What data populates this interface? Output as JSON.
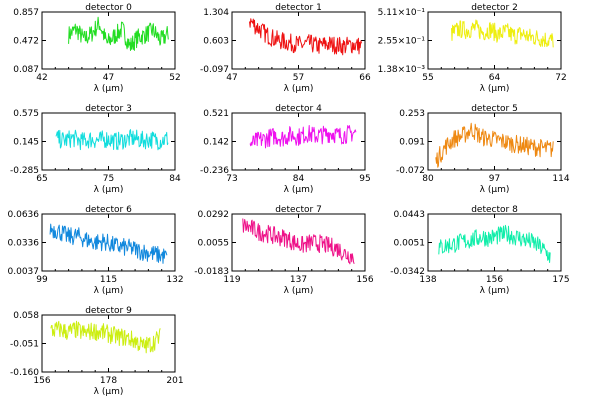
{
  "chart_data": [
    {
      "type": "line",
      "title": "detector 0",
      "xlabel": "λ (μm)",
      "x_range": [
        42,
        52
      ],
      "xticks": [
        "42",
        "47",
        "52"
      ],
      "ylim": [
        0.087,
        0.857
      ],
      "yticks": [
        "0.857",
        "0.472",
        "0.087"
      ],
      "color": "#22dd22",
      "x_extent": [
        44,
        51.5
      ],
      "anchors": [
        0.6,
        0.7,
        0.52,
        0.62,
        0.8,
        0.45,
        0.58,
        0.7,
        0.4,
        0.55,
        0.6,
        0.68,
        0.5,
        0.62
      ]
    },
    {
      "type": "line",
      "title": "detector 1",
      "xlabel": "λ (μm)",
      "x_range": [
        47,
        66
      ],
      "xticks": [
        "47",
        "57",
        "66"
      ],
      "ylim": [
        -0.097,
        1.304
      ],
      "yticks": [
        "1.304",
        "0.603",
        "-0.097"
      ],
      "color": "#ee1111",
      "x_extent": [
        49.5,
        65.5
      ],
      "anchors": [
        0.85,
        0.72,
        0.6,
        0.52,
        0.48,
        0.45,
        0.42,
        0.45,
        0.4,
        0.44,
        0.42,
        0.4,
        0.43,
        0.4
      ]
    },
    {
      "type": "line",
      "title": "detector 2",
      "xlabel": "λ (μm)",
      "x_range": [
        55,
        72
      ],
      "xticks": [
        "55",
        "64",
        "72"
      ],
      "ylim": [
        0.00138,
        0.511
      ],
      "yticks": [
        "5.11×10⁻¹",
        "2.55×10⁻¹",
        "1.38×10⁻³"
      ],
      "color": "#eeee11",
      "x_extent": [
        58,
        71
      ],
      "anchors": [
        0.62,
        0.7,
        0.68,
        0.72,
        0.64,
        0.7,
        0.6,
        0.66,
        0.58,
        0.62,
        0.56,
        0.55,
        0.52,
        0.5
      ]
    },
    {
      "type": "line",
      "title": "detector 3",
      "xlabel": "λ (μm)",
      "x_range": [
        65,
        84
      ],
      "xticks": [
        "65",
        "75",
        "84"
      ],
      "ylim": [
        -0.285,
        0.575
      ],
      "yticks": [
        "0.575",
        "0.145",
        "-0.285"
      ],
      "color": "#11dddd",
      "x_extent": [
        67,
        83
      ],
      "anchors": [
        0.55,
        0.52,
        0.56,
        0.5,
        0.54,
        0.52,
        0.55,
        0.5,
        0.53,
        0.56,
        0.52,
        0.54,
        0.51,
        0.55
      ]
    },
    {
      "type": "line",
      "title": "detector 4",
      "xlabel": "λ (μm)",
      "x_range": [
        73,
        95
      ],
      "xticks": [
        "73",
        "84",
        "95"
      ],
      "ylim": [
        -0.236,
        0.521
      ],
      "yticks": [
        "0.521",
        "0.142",
        "-0.236"
      ],
      "color": "#ee11ee",
      "x_extent": [
        76,
        93.5
      ],
      "anchors": [
        0.45,
        0.52,
        0.55,
        0.6,
        0.56,
        0.62,
        0.58,
        0.64,
        0.6,
        0.62,
        0.65,
        0.6,
        0.63,
        0.66
      ]
    },
    {
      "type": "line",
      "title": "detector 5",
      "xlabel": "λ (μm)",
      "x_range": [
        80,
        114
      ],
      "xticks": [
        "80",
        "97",
        "114"
      ],
      "ylim": [
        -0.072,
        0.253
      ],
      "yticks": [
        "0.253",
        "0.091",
        "-0.072"
      ],
      "color": "#ee8811",
      "x_extent": [
        82,
        112
      ],
      "anchors": [
        0.15,
        0.4,
        0.55,
        0.6,
        0.72,
        0.58,
        0.55,
        0.52,
        0.48,
        0.45,
        0.42,
        0.4,
        0.38,
        0.36
      ]
    },
    {
      "type": "line",
      "title": "detector 6",
      "xlabel": "λ (μm)",
      "x_range": [
        99,
        132
      ],
      "xticks": [
        "99",
        "115",
        "132"
      ],
      "ylim": [
        0.0037,
        0.0636
      ],
      "yticks": [
        "0.0636",
        "0.0336",
        "0.0037"
      ],
      "color": "#1188dd",
      "x_extent": [
        101,
        130
      ],
      "anchors": [
        0.75,
        0.7,
        0.6,
        0.62,
        0.55,
        0.5,
        0.52,
        0.45,
        0.42,
        0.4,
        0.35,
        0.32,
        0.28,
        0.25
      ]
    },
    {
      "type": "line",
      "title": "detector 7",
      "xlabel": "λ (μm)",
      "x_range": [
        119,
        156
      ],
      "xticks": [
        "119",
        "137",
        "156"
      ],
      "ylim": [
        -0.0183,
        0.0292
      ],
      "yticks": [
        "0.0292",
        "0.0055",
        "-0.0183"
      ],
      "color": "#ee1188",
      "x_extent": [
        122,
        153
      ],
      "anchors": [
        0.8,
        0.75,
        0.68,
        0.65,
        0.6,
        0.58,
        0.5,
        0.45,
        0.5,
        0.48,
        0.44,
        0.4,
        0.3,
        0.25
      ]
    },
    {
      "type": "line",
      "title": "detector 8",
      "xlabel": "λ (μm)",
      "x_range": [
        138,
        175
      ],
      "xticks": [
        "138",
        "156",
        "175"
      ],
      "ylim": [
        -0.0342,
        0.0443
      ],
      "yticks": [
        "0.0443",
        "0.0051",
        "-0.0342"
      ],
      "color": "#11eeaa",
      "x_extent": [
        141,
        172
      ],
      "anchors": [
        0.4,
        0.45,
        0.48,
        0.52,
        0.55,
        0.6,
        0.58,
        0.62,
        0.65,
        0.6,
        0.55,
        0.5,
        0.4,
        0.25
      ]
    },
    {
      "type": "line",
      "title": "detector 9",
      "xlabel": "λ (μm)",
      "x_range": [
        156,
        201
      ],
      "xticks": [
        "156",
        "178",
        "201"
      ],
      "ylim": [
        -0.16,
        0.058
      ],
      "yticks": [
        "0.058",
        "-0.051",
        "-0.160"
      ],
      "color": "#ccee11",
      "x_extent": [
        159,
        196
      ],
      "anchors": [
        0.72,
        0.75,
        0.7,
        0.74,
        0.68,
        0.72,
        0.7,
        0.66,
        0.62,
        0.6,
        0.55,
        0.45,
        0.5,
        0.62
      ]
    }
  ]
}
